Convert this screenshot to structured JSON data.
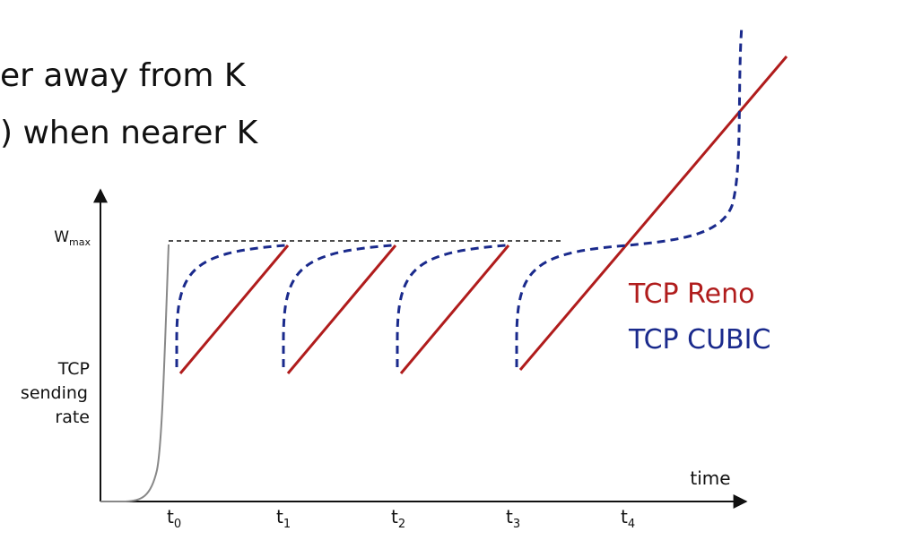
{
  "slide": {
    "line1": "er away from K",
    "line2": ") when nearer K"
  },
  "diagram": {
    "y_axis_label": [
      "TCP",
      "sending",
      "rate"
    ],
    "wmax_label": {
      "main": "W",
      "sub": "max"
    },
    "x_axis_label": "time",
    "ticks": [
      {
        "main": "t",
        "sub": "0"
      },
      {
        "main": "t",
        "sub": "1"
      },
      {
        "main": "t",
        "sub": "2"
      },
      {
        "main": "t",
        "sub": "3"
      },
      {
        "main": "t",
        "sub": "4"
      }
    ],
    "legend": [
      {
        "name": "TCP Reno",
        "color": "#b01c1c"
      },
      {
        "name": "TCP CUBIC",
        "color": "#1a2a8c"
      }
    ],
    "colors": {
      "axis": "#111111",
      "slow_start": "#888888",
      "wmax_line": "#111111"
    }
  }
}
